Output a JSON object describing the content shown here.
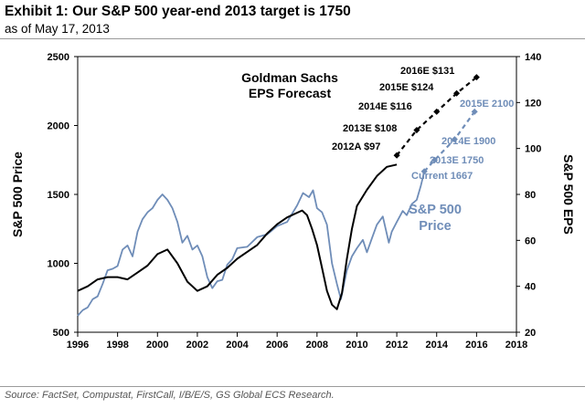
{
  "title": "Exhibit 1: Our S&P 500 year-end 2013 target is 1750",
  "subtitle": "as of May 17, 2013",
  "source": "Source: FactSet, Compustat, FirstCall, I/B/E/S, GS Global ECS Research.",
  "colors": {
    "price": "#6f8db8",
    "eps": "#000000",
    "border": "#9a9a9a"
  },
  "chart_data": {
    "type": "line",
    "xlim": [
      1996,
      2018
    ],
    "x_ticks": [
      "1996",
      "1998",
      "2000",
      "2002",
      "2004",
      "2006",
      "2008",
      "2010",
      "2012",
      "2014",
      "2016",
      "2018"
    ],
    "ylabel_left": "S&P 500 Price",
    "ylim_left": [
      500,
      2500
    ],
    "y_ticks_left": [
      "500",
      "1000",
      "1500",
      "2000",
      "2500"
    ],
    "ylabel_right": "S&P 500 EPS",
    "ylim_right": [
      20,
      140
    ],
    "y_ticks_right": [
      "20",
      "40",
      "60",
      "80",
      "100",
      "120",
      "140"
    ],
    "series": [
      {
        "name": "S&P 500 Price",
        "axis": "left",
        "color": "#6f8db8",
        "x": [
          1996.0,
          1996.25,
          1996.5,
          1996.75,
          1997.0,
          1997.25,
          1997.5,
          1997.75,
          1998.0,
          1998.25,
          1998.5,
          1998.75,
          1999.0,
          1999.25,
          1999.5,
          1999.75,
          2000.0,
          2000.25,
          2000.5,
          2000.75,
          2001.0,
          2001.25,
          2001.5,
          2001.75,
          2002.0,
          2002.25,
          2002.5,
          2002.75,
          2003.0,
          2003.25,
          2003.5,
          2003.75,
          2004.0,
          2004.5,
          2005.0,
          2005.5,
          2006.0,
          2006.5,
          2007.0,
          2007.3,
          2007.6,
          2007.8,
          2008.0,
          2008.25,
          2008.5,
          2008.75,
          2009.0,
          2009.2,
          2009.5,
          2009.75,
          2010.0,
          2010.3,
          2010.5,
          2010.75,
          2011.0,
          2011.3,
          2011.6,
          2011.75,
          2012.0,
          2012.3,
          2012.5,
          2012.75,
          2013.0,
          2013.2,
          2013.38
        ],
        "values": [
          620,
          660,
          680,
          740,
          760,
          850,
          950,
          960,
          980,
          1100,
          1130,
          1050,
          1230,
          1320,
          1370,
          1400,
          1460,
          1500,
          1460,
          1400,
          1300,
          1150,
          1200,
          1100,
          1130,
          1050,
          900,
          820,
          870,
          880,
          990,
          1030,
          1110,
          1120,
          1190,
          1210,
          1270,
          1300,
          1420,
          1510,
          1480,
          1530,
          1400,
          1370,
          1280,
          1000,
          850,
          740,
          950,
          1050,
          1110,
          1170,
          1080,
          1180,
          1280,
          1340,
          1150,
          1230,
          1300,
          1380,
          1350,
          1430,
          1460,
          1560,
          1667
        ]
      },
      {
        "name": "S&P 500 EPS",
        "axis": "right",
        "color": "#000000",
        "x": [
          1996.0,
          1996.5,
          1997.0,
          1997.5,
          1998.0,
          1998.5,
          1999.0,
          1999.5,
          2000.0,
          2000.5,
          2001.0,
          2001.5,
          2002.0,
          2002.5,
          2003.0,
          2003.5,
          2004.0,
          2004.5,
          2005.0,
          2005.5,
          2006.0,
          2006.5,
          2007.0,
          2007.25,
          2007.5,
          2007.75,
          2008.0,
          2008.25,
          2008.5,
          2008.75,
          2009.0,
          2009.25,
          2009.5,
          2009.75,
          2010.0,
          2010.5,
          2011.0,
          2011.5,
          2012.0
        ],
        "values": [
          38,
          40,
          43,
          44,
          44,
          43,
          46,
          49,
          54,
          56,
          50,
          42,
          38,
          40,
          45,
          48,
          52,
          55,
          58,
          63,
          67,
          70,
          72,
          73,
          71,
          65,
          58,
          48,
          38,
          32,
          30,
          37,
          52,
          65,
          75,
          82,
          88,
          92,
          93
        ]
      },
      {
        "name": "EPS forecast",
        "axis": "right",
        "color": "#000000",
        "dashed": true,
        "x": [
          2012,
          2013,
          2014,
          2015,
          2016
        ],
        "values": [
          97,
          108,
          116,
          124,
          131
        ]
      },
      {
        "name": "Price target",
        "axis": "left",
        "color": "#6f8db8",
        "dashed": true,
        "x": [
          2013.38,
          2013.9,
          2014.9,
          2015.9
        ],
        "values": [
          1667,
          1750,
          1900,
          2100
        ]
      }
    ],
    "annotations": {
      "forecast_title": [
        "Goldman Sachs",
        "EPS Forecast"
      ],
      "eps_labels": [
        "2012A $97",
        "2013E $108",
        "2014E $116",
        "2015E $124",
        "2016E $131"
      ],
      "price_labels": [
        "Current 1667",
        "2013E 1750",
        "2014E 1900",
        "2015E 2100"
      ],
      "price_series_label": [
        "S&P 500",
        "Price"
      ]
    }
  }
}
